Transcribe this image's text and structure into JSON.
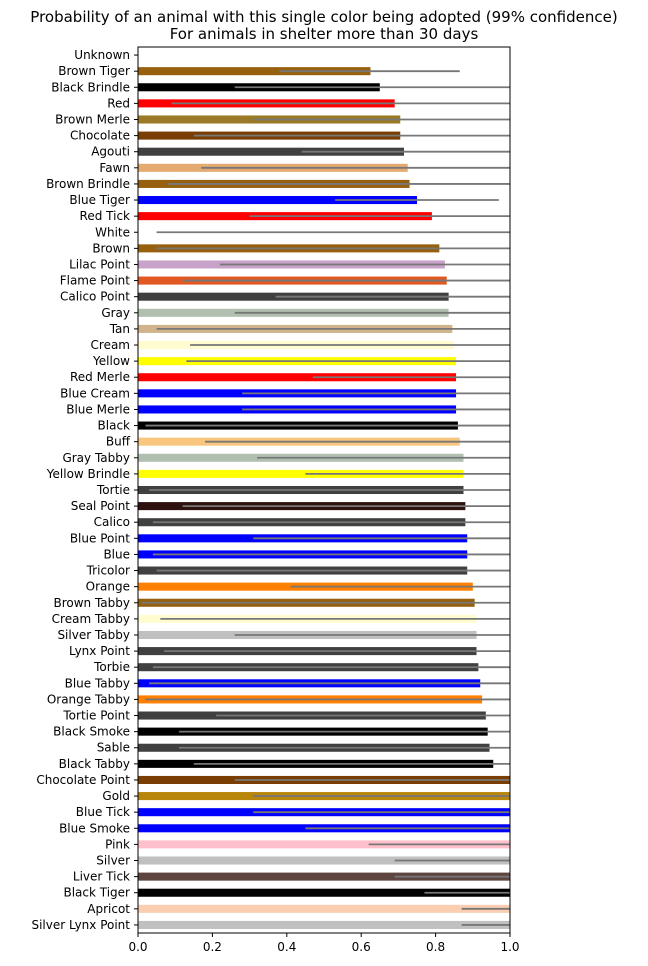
{
  "chart_data": {
    "type": "bar",
    "orientation": "horizontal",
    "title": "Probability of an animal with this single color being adopted (99% confidence)",
    "subtitle": "For animals in shelter more than 30 days",
    "xlabel": "",
    "ylabel": "",
    "xlim": [
      0,
      1.0
    ],
    "xticks": [
      "0.0",
      "0.2",
      "0.4",
      "0.6",
      "0.8",
      "1.0"
    ],
    "grid": false,
    "legend": "none",
    "error_bar_color": "#777777",
    "bars": [
      {
        "label": "Unknown",
        "value": null,
        "ci": null,
        "color": "#ffffff"
      },
      {
        "label": "Brown Tiger",
        "value": 0.625,
        "ci": [
          0.38,
          0.865
        ],
        "color": "#96600f"
      },
      {
        "label": "Black Brindle",
        "value": 0.65,
        "ci": [
          0.26,
          1.0
        ],
        "color": "#000000"
      },
      {
        "label": "Red",
        "value": 0.69,
        "ci": [
          0.09,
          1.0
        ],
        "color": "#ff0000"
      },
      {
        "label": "Brown Merle",
        "value": 0.705,
        "ci": [
          0.31,
          1.0
        ],
        "color": "#9b7a27"
      },
      {
        "label": "Chocolate",
        "value": 0.705,
        "ci": [
          0.15,
          1.0
        ],
        "color": "#7a3e05"
      },
      {
        "label": "Agouti",
        "value": 0.715,
        "ci": [
          0.44,
          1.0
        ],
        "color": "#404040"
      },
      {
        "label": "Fawn",
        "value": 0.725,
        "ci": [
          0.17,
          1.0
        ],
        "color": "#e5aa70"
      },
      {
        "label": "Brown Brindle",
        "value": 0.73,
        "ci": [
          0.08,
          1.0
        ],
        "color": "#96600f"
      },
      {
        "label": "Blue Tiger",
        "value": 0.75,
        "ci": [
          0.53,
          0.97
        ],
        "color": "#0000ff"
      },
      {
        "label": "Red Tick",
        "value": 0.79,
        "ci": [
          0.3,
          1.0
        ],
        "color": "#ff0000"
      },
      {
        "label": "White",
        "value": null,
        "ci": [
          0.05,
          1.0
        ],
        "color": "#ffffff"
      },
      {
        "label": "Brown",
        "value": 0.81,
        "ci": [
          0.05,
          1.0
        ],
        "color": "#96600f"
      },
      {
        "label": "Lilac Point",
        "value": 0.825,
        "ci": [
          0.22,
          1.0
        ],
        "color": "#c8a2c8"
      },
      {
        "label": "Flame Point",
        "value": 0.83,
        "ci": [
          0.12,
          1.0
        ],
        "color": "#e25822"
      },
      {
        "label": "Calico Point",
        "value": 0.835,
        "ci": [
          0.37,
          1.0
        ],
        "color": "#404040"
      },
      {
        "label": "Gray",
        "value": 0.835,
        "ci": [
          0.26,
          1.0
        ],
        "color": "#b0bfb0"
      },
      {
        "label": "Tan",
        "value": 0.845,
        "ci": [
          0.05,
          1.0
        ],
        "color": "#d2b48c"
      },
      {
        "label": "Cream",
        "value": 0.85,
        "ci": [
          0.14,
          1.0
        ],
        "color": "#fffdd0"
      },
      {
        "label": "Yellow",
        "value": 0.855,
        "ci": [
          0.13,
          1.0
        ],
        "color": "#ffff00"
      },
      {
        "label": "Red Merle",
        "value": 0.855,
        "ci": [
          0.47,
          1.0
        ],
        "color": "#ff0000"
      },
      {
        "label": "Blue Cream",
        "value": 0.855,
        "ci": [
          0.28,
          1.0
        ],
        "color": "#0000ff"
      },
      {
        "label": "Blue Merle",
        "value": 0.855,
        "ci": [
          0.28,
          1.0
        ],
        "color": "#0000ff"
      },
      {
        "label": "Black",
        "value": 0.86,
        "ci": [
          0.02,
          1.0
        ],
        "color": "#000000"
      },
      {
        "label": "Buff",
        "value": 0.865,
        "ci": [
          0.18,
          1.0
        ],
        "color": "#f8c67e"
      },
      {
        "label": "Gray Tabby",
        "value": 0.875,
        "ci": [
          0.32,
          1.0
        ],
        "color": "#b0bfb0"
      },
      {
        "label": "Yellow Brindle",
        "value": 0.875,
        "ci": [
          0.45,
          1.0
        ],
        "color": "#ffff00"
      },
      {
        "label": "Tortie",
        "value": 0.875,
        "ci": [
          0.03,
          1.0
        ],
        "color": "#404040"
      },
      {
        "label": "Seal Point",
        "value": 0.88,
        "ci": [
          0.12,
          1.0
        ],
        "color": "#2d1210"
      },
      {
        "label": "Calico",
        "value": 0.88,
        "ci": [
          0.04,
          1.0
        ],
        "color": "#404040"
      },
      {
        "label": "Blue Point",
        "value": 0.885,
        "ci": [
          0.31,
          1.0
        ],
        "color": "#0000ff"
      },
      {
        "label": "Blue",
        "value": 0.885,
        "ci": [
          0.04,
          1.0
        ],
        "color": "#0000ff"
      },
      {
        "label": "Tricolor",
        "value": 0.885,
        "ci": [
          0.05,
          1.0
        ],
        "color": "#404040"
      },
      {
        "label": "Orange",
        "value": 0.9,
        "ci": [
          0.41,
          1.0
        ],
        "color": "#ff7f00"
      },
      {
        "label": "Brown Tabby",
        "value": 0.905,
        "ci": [
          0.01,
          1.0
        ],
        "color": "#96600f"
      },
      {
        "label": "Cream Tabby",
        "value": 0.91,
        "ci": [
          0.06,
          1.0
        ],
        "color": "#fffdd0"
      },
      {
        "label": "Silver Tabby",
        "value": 0.91,
        "ci": [
          0.26,
          1.0
        ],
        "color": "#c0c0c0"
      },
      {
        "label": "Lynx Point",
        "value": 0.91,
        "ci": [
          0.07,
          1.0
        ],
        "color": "#404040"
      },
      {
        "label": "Torbie",
        "value": 0.915,
        "ci": [
          0.04,
          1.0
        ],
        "color": "#404040"
      },
      {
        "label": "Blue Tabby",
        "value": 0.92,
        "ci": [
          0.03,
          1.0
        ],
        "color": "#0000ff"
      },
      {
        "label": "Orange Tabby",
        "value": 0.925,
        "ci": [
          0.02,
          1.0
        ],
        "color": "#ff7f00"
      },
      {
        "label": "Tortie Point",
        "value": 0.935,
        "ci": [
          0.21,
          1.0
        ],
        "color": "#404040"
      },
      {
        "label": "Black Smoke",
        "value": 0.94,
        "ci": [
          0.11,
          1.0
        ],
        "color": "#000000"
      },
      {
        "label": "Sable",
        "value": 0.945,
        "ci": [
          0.11,
          1.0
        ],
        "color": "#404040"
      },
      {
        "label": "Black Tabby",
        "value": 0.955,
        "ci": [
          0.15,
          1.0
        ],
        "color": "#000000"
      },
      {
        "label": "Chocolate Point",
        "value": 1.0,
        "ci": [
          0.26,
          1.0
        ],
        "color": "#7a3e05"
      },
      {
        "label": "Gold",
        "value": 1.0,
        "ci": [
          0.31,
          1.0
        ],
        "color": "#b8860b"
      },
      {
        "label": "Blue Tick",
        "value": 1.0,
        "ci": [
          0.31,
          1.0
        ],
        "color": "#0000ff"
      },
      {
        "label": "Blue Smoke",
        "value": 1.0,
        "ci": [
          0.45,
          1.0
        ],
        "color": "#0000ff"
      },
      {
        "label": "Pink",
        "value": 1.0,
        "ci": [
          0.62,
          1.0
        ],
        "color": "#ffc0cb"
      },
      {
        "label": "Silver",
        "value": 1.0,
        "ci": [
          0.69,
          1.0
        ],
        "color": "#c0c0c0"
      },
      {
        "label": "Liver Tick",
        "value": 1.0,
        "ci": [
          0.69,
          1.0
        ],
        "color": "#5e4540"
      },
      {
        "label": "Black Tiger",
        "value": 1.0,
        "ci": [
          0.77,
          1.0
        ],
        "color": "#000000"
      },
      {
        "label": "Apricot",
        "value": 1.0,
        "ci": [
          0.87,
          1.0
        ],
        "color": "#fbceb1"
      },
      {
        "label": "Silver Lynx Point",
        "value": 1.0,
        "ci": [
          0.87,
          1.0
        ],
        "color": "#c0c0c0"
      }
    ]
  }
}
